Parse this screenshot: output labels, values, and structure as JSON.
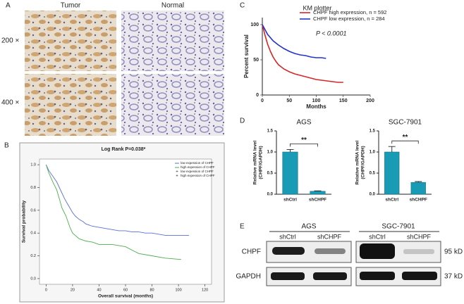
{
  "panel_labels": [
    "A",
    "B",
    "C",
    "D",
    "E"
  ],
  "panel_a": {
    "columns": [
      "Tumor",
      "Normal"
    ],
    "rows": [
      "200 ×",
      "400 ×"
    ]
  },
  "panel_e": {
    "groups": [
      "AGS",
      "SGC-7901"
    ],
    "lanes": [
      "shCtrl",
      "shCHPF",
      "shCtrl",
      "shCHPF"
    ],
    "proteins": [
      "CHPF",
      "GAPDH"
    ],
    "sizes": [
      "95 kD",
      "37 kD"
    ]
  },
  "chart_data": [
    {
      "type": "line",
      "title": "Log Rank P=0.038*",
      "xlabel": "Overall survival (months)",
      "ylabel": "Survival probability",
      "xlim": [
        -5,
        125
      ],
      "ylim": [
        -0.05,
        1.05
      ],
      "xticks": [
        0,
        20,
        40,
        60,
        80,
        100,
        120
      ],
      "yticks": [
        {
          "value": 0,
          "label": "0.0"
        },
        {
          "value": 0.2,
          "label": "0.2"
        },
        {
          "value": 0.4,
          "label": "0.4"
        },
        {
          "value": 0.6,
          "label": "0.6"
        },
        {
          "value": 0.8,
          "label": "0.8"
        },
        {
          "value": 1,
          "label": "1.0"
        }
      ],
      "series": [
        {
          "name": "low expession of CHPF",
          "color": "#5b6fd6",
          "x": [
            0,
            2,
            5,
            8,
            10,
            12,
            14,
            16,
            18,
            20,
            22,
            25,
            28,
            30,
            35,
            40,
            45,
            50,
            55,
            60,
            65,
            70,
            75,
            80,
            90,
            100,
            108
          ],
          "values": [
            1.0,
            0.95,
            0.9,
            0.85,
            0.8,
            0.75,
            0.7,
            0.66,
            0.62,
            0.58,
            0.55,
            0.52,
            0.5,
            0.48,
            0.46,
            0.45,
            0.44,
            0.43,
            0.42,
            0.42,
            0.41,
            0.41,
            0.4,
            0.4,
            0.38,
            0.38,
            0.38
          ]
        },
        {
          "name": "high expession of CHPF",
          "color": "#4cae4c",
          "x": [
            0,
            2,
            5,
            8,
            10,
            12,
            15,
            18,
            20,
            25,
            30,
            35,
            40,
            45,
            50,
            60,
            65,
            70,
            80,
            90,
            100,
            102
          ],
          "values": [
            1.0,
            0.93,
            0.85,
            0.78,
            0.7,
            0.62,
            0.55,
            0.45,
            0.4,
            0.35,
            0.33,
            0.32,
            0.3,
            0.3,
            0.3,
            0.28,
            0.25,
            0.22,
            0.2,
            0.18,
            0.17,
            0.17
          ]
        }
      ],
      "censored_legend": [
        "low expession of CHPF",
        "high expession of CHPF"
      ]
    },
    {
      "type": "line",
      "title": "KM plotter",
      "annotation": "P < 0.0001",
      "xlabel": "Months",
      "ylabel": "Percent survival",
      "xlim": [
        0,
        200
      ],
      "ylim": [
        0,
        110
      ],
      "xticks": [
        0,
        50,
        100,
        150,
        200
      ],
      "yticks": [
        0,
        50,
        100
      ],
      "series": [
        {
          "name": "CHPF high expression, n = 592",
          "color": "#d62728",
          "x": [
            0,
            5,
            10,
            15,
            20,
            25,
            30,
            40,
            50,
            60,
            70,
            80,
            90,
            100,
            110,
            120,
            130,
            140,
            150
          ],
          "values": [
            100,
            85,
            72,
            62,
            54,
            48,
            43,
            37,
            33,
            30,
            28,
            26,
            24,
            22,
            21,
            20,
            19,
            18,
            18
          ]
        },
        {
          "name": "CHPF low expression, n = 284",
          "color": "#2233cc",
          "x": [
            0,
            5,
            10,
            20,
            30,
            40,
            50,
            60,
            70,
            80,
            90,
            100,
            110,
            118
          ],
          "values": [
            100,
            93,
            86,
            77,
            71,
            66,
            62,
            59,
            57,
            56,
            54,
            53,
            53,
            52
          ]
        }
      ]
    },
    {
      "type": "bar",
      "title": "AGS",
      "ylabel": [
        "Relative mRNA level",
        "(CHPF/GAPDH)"
      ],
      "annotation": "**",
      "categories": [
        "shCtrl",
        "shCHPF"
      ],
      "values": [
        1.0,
        0.07
      ],
      "errors": [
        0.06,
        0.01
      ],
      "color": "#1a9bb5",
      "ylim": [
        0,
        1.5
      ],
      "yticks": [
        {
          "value": 0,
          "label": "0.0"
        },
        {
          "value": 0.5,
          "label": "0.5"
        },
        {
          "value": 1,
          "label": "1.0"
        },
        {
          "value": 1.5,
          "label": "1.5"
        }
      ]
    },
    {
      "type": "bar",
      "title": "SGC-7901",
      "ylabel": [
        "Relative mRNA level",
        "(CHPF/GAPDH)"
      ],
      "annotation": "**",
      "categories": [
        "shCtrl",
        "shCHPF"
      ],
      "values": [
        1.0,
        0.28
      ],
      "errors": [
        0.13,
        0.02
      ],
      "color": "#1a9bb5",
      "ylim": [
        0,
        1.5
      ],
      "yticks": [
        {
          "value": 0,
          "label": "0.0"
        },
        {
          "value": 0.5,
          "label": "0.5"
        },
        {
          "value": 1,
          "label": "1.0"
        },
        {
          "value": 1.5,
          "label": "1.5"
        }
      ]
    }
  ]
}
